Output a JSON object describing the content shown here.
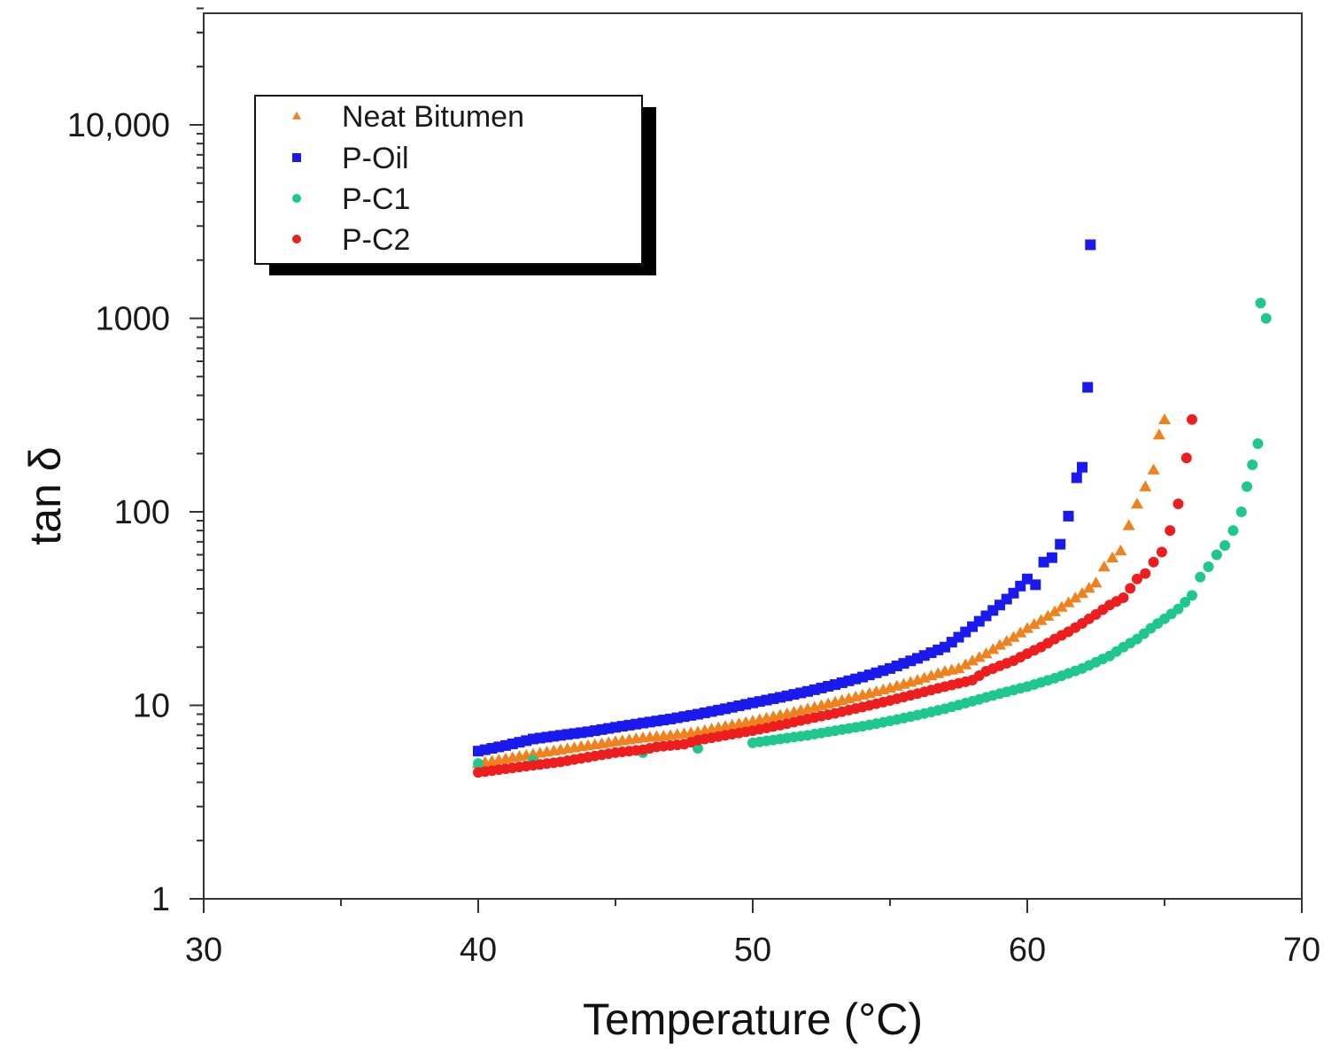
{
  "chart_data": {
    "type": "scatter",
    "title": "",
    "xlabel": "Temperature (°C)",
    "ylabel": "tan δ",
    "xlim": [
      30,
      70
    ],
    "ylim": [
      1,
      40000
    ],
    "yscale": "log",
    "x_ticks": [
      30,
      40,
      50,
      60,
      70
    ],
    "x_tick_labels": [
      "30",
      "40",
      "50",
      "60",
      "70"
    ],
    "y_ticks": [
      1,
      10,
      100,
      1000,
      10000
    ],
    "y_tick_labels": [
      "1",
      "10",
      "100",
      "1000",
      "10,000"
    ],
    "grid": false,
    "legend_position": "top-left",
    "series": [
      {
        "name": "Neat Bitumen",
        "color": "#f0821e",
        "marker": "triangle",
        "x": [
          40.0,
          41.0,
          42.0,
          43.0,
          44.0,
          45.0,
          46.0,
          47.0,
          48.0,
          49.0,
          50.0,
          51.0,
          52.0,
          53.0,
          54.0,
          55.0,
          56.0,
          57.0,
          57.5,
          58.0,
          58.5,
          59.0,
          59.5,
          60.0,
          60.5,
          61.0,
          61.5,
          62.0,
          62.5,
          62.8,
          63.1,
          63.4,
          63.7,
          64.0,
          64.3,
          64.6,
          64.8,
          65.0
        ],
        "y": [
          5.0,
          5.3,
          5.6,
          5.9,
          6.2,
          6.5,
          6.8,
          7.0,
          7.3,
          7.8,
          8.3,
          8.9,
          9.6,
          10.4,
          11.3,
          12.3,
          13.5,
          15.0,
          15.5,
          17.0,
          18.5,
          20.5,
          22.5,
          25.0,
          27.5,
          30.5,
          34.0,
          38.0,
          43.0,
          52.0,
          58.0,
          63.0,
          85.0,
          110.0,
          135.0,
          165.0,
          250.0,
          300.0
        ]
      },
      {
        "name": "P-Oil",
        "color": "#1a1aee",
        "marker": "square",
        "x": [
          40.0,
          41.0,
          42.0,
          43.0,
          44.0,
          45.0,
          46.0,
          47.0,
          48.0,
          49.0,
          50.0,
          51.0,
          52.0,
          53.0,
          54.0,
          55.0,
          56.0,
          57.0,
          57.5,
          58.0,
          58.5,
          59.0,
          59.5,
          60.0,
          60.3,
          60.6,
          60.9,
          61.2,
          61.5,
          61.8,
          62.0,
          62.2,
          62.3
        ],
        "y": [
          5.8,
          6.2,
          6.7,
          7.0,
          7.3,
          7.7,
          8.1,
          8.5,
          9.0,
          9.6,
          10.3,
          11.0,
          11.8,
          12.8,
          14.0,
          15.5,
          17.5,
          20.0,
          22.5,
          25.5,
          29.0,
          33.0,
          38.0,
          45.0,
          42.0,
          55.0,
          58.0,
          68.0,
          95.0,
          150.0,
          170.0,
          440.0,
          2400.0
        ]
      },
      {
        "name": "P-C1",
        "color": "#1ec88c",
        "marker": "circle",
        "x": [
          40.0,
          42.0,
          44.0,
          46.0,
          48.0,
          50.0,
          51.0,
          52.0,
          53.0,
          54.0,
          55.0,
          56.0,
          57.0,
          58.0,
          59.0,
          60.0,
          61.0,
          62.0,
          63.0,
          63.5,
          64.0,
          64.5,
          65.0,
          65.5,
          66.0,
          66.3,
          66.6,
          66.9,
          67.2,
          67.5,
          67.8,
          68.0,
          68.2,
          68.4,
          68.5,
          68.7
        ],
        "y": [
          5.0,
          5.2,
          5.4,
          5.7,
          6.0,
          6.4,
          6.7,
          7.0,
          7.4,
          7.8,
          8.3,
          8.9,
          9.6,
          10.5,
          11.5,
          12.5,
          13.8,
          15.5,
          18.0,
          20.0,
          22.0,
          25.0,
          28.0,
          31.5,
          37.0,
          46.0,
          52.0,
          60.0,
          67.0,
          80.0,
          100.0,
          135.0,
          175.0,
          225.0,
          1200.0,
          1000.0
        ]
      },
      {
        "name": "P-C2",
        "color": "#ee1e1e",
        "marker": "circle",
        "x": [
          40.0,
          41.0,
          42.0,
          43.0,
          44.0,
          45.0,
          46.0,
          46.5,
          47.5,
          48.0,
          49.0,
          50.0,
          51.0,
          52.0,
          53.0,
          54.0,
          55.0,
          56.0,
          57.0,
          58.0,
          58.5,
          59.0,
          59.5,
          60.0,
          60.5,
          61.0,
          61.5,
          62.0,
          62.5,
          63.0,
          63.5,
          64.0,
          64.3,
          64.6,
          64.9,
          65.2,
          65.5,
          65.8,
          66.0
        ],
        "y": [
          4.5,
          4.7,
          4.9,
          5.1,
          5.4,
          5.7,
          5.9,
          6.1,
          6.3,
          6.6,
          7.0,
          7.4,
          7.9,
          8.5,
          9.1,
          9.8,
          10.6,
          11.5,
          12.5,
          13.5,
          15.0,
          16.0,
          17.0,
          18.5,
          20.0,
          22.0,
          24.0,
          26.5,
          29.5,
          33.0,
          36.0,
          45.0,
          48.0,
          55.0,
          62.0,
          80.0,
          110.0,
          190.0,
          300.0
        ]
      }
    ]
  }
}
